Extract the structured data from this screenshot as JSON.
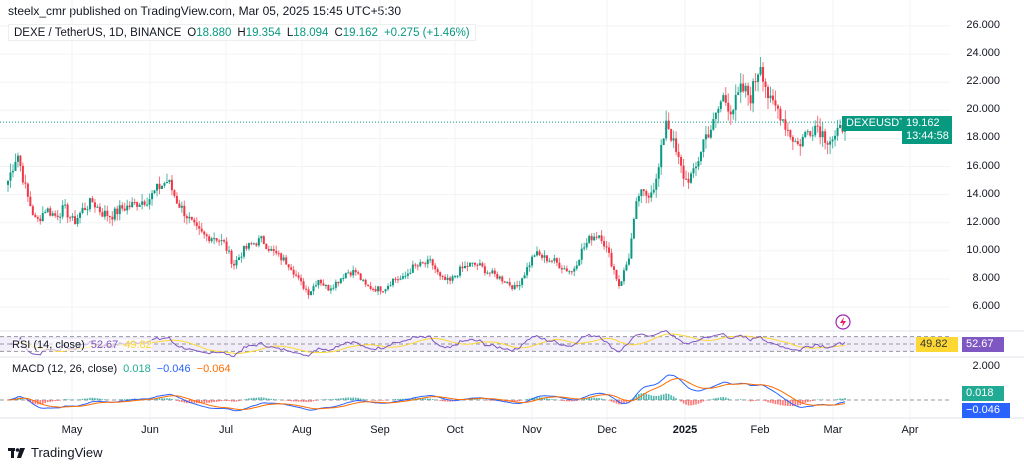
{
  "header": {
    "published": "steelx_cmr published on TradingView.com, Mar 05, 2025 15:45 UTC+5:30"
  },
  "legend": {
    "symbol": "DEXE / TetherUS, 1D, BINANCE",
    "open_label": "O",
    "open": "18.880",
    "high_label": "H",
    "high": "19.354",
    "low_label": "L",
    "low": "18.094",
    "close_label": "C",
    "close": "19.162",
    "change": "+0.275 (+1.46%)"
  },
  "price_axis": [
    "26.000",
    "24.000",
    "22.000",
    "20.000",
    "18.000",
    "16.000",
    "14.000",
    "12.000",
    "10.000",
    "8.000",
    "6.000"
  ],
  "price_tag": {
    "symbol": "DEXEUSDT",
    "price": "19.162",
    "countdown": "13:44:58"
  },
  "rsi": {
    "title": "RSI (14, close)",
    "value": "52.67",
    "ma": "49.82"
  },
  "macd": {
    "title": "MACD (12, 26, close)",
    "hist": "0.018",
    "macd": "−0.046",
    "signal": "−0.064",
    "axis_label": "2.000"
  },
  "time_axis": [
    "May",
    "Jun",
    "Jul",
    "Aug",
    "Sep",
    "Oct",
    "Nov",
    "Dec",
    "2025",
    "Feb",
    "Mar",
    "Apr"
  ],
  "footer": {
    "brand": "TradingView"
  },
  "colors": {
    "up": "#089981",
    "down": "#F23645",
    "rsi": "#7E57C2",
    "rsi_ma": "#FDD835",
    "macd": "#2962FF",
    "signal": "#FF6D00"
  },
  "chart_data": {
    "type": "candlestick",
    "ylim": [
      6,
      26
    ],
    "key_closes": [
      15,
      17,
      14,
      12,
      13,
      12.5,
      13,
      12,
      13,
      13.5,
      12.7,
      12.5,
      13,
      13.2,
      13.5,
      13.7,
      14.5,
      15,
      13.5,
      12.5,
      11.5,
      11,
      11,
      10.5,
      9,
      10,
      10.5,
      10.8,
      10,
      9.5,
      9,
      7.8,
      7,
      8,
      7.3,
      7.8,
      8.5,
      8.5,
      7.5,
      7.3,
      7.3,
      8,
      8,
      8.8,
      9,
      9.2,
      8,
      7.8,
      8.6,
      9,
      9,
      8.5,
      8.2,
      7.8,
      7.3,
      8.5,
      9.8,
      9.5,
      9.3,
      8.8,
      8.5,
      10,
      11,
      11.2,
      9.5,
      7.5,
      9.5,
      14,
      14,
      15,
      19.5,
      17,
      15,
      15.5,
      18,
      19,
      21,
      20,
      21.5,
      21,
      23.5,
      20.5,
      20,
      18.5,
      17.5,
      18.5,
      19,
      18,
      18,
      19.16
    ]
  }
}
